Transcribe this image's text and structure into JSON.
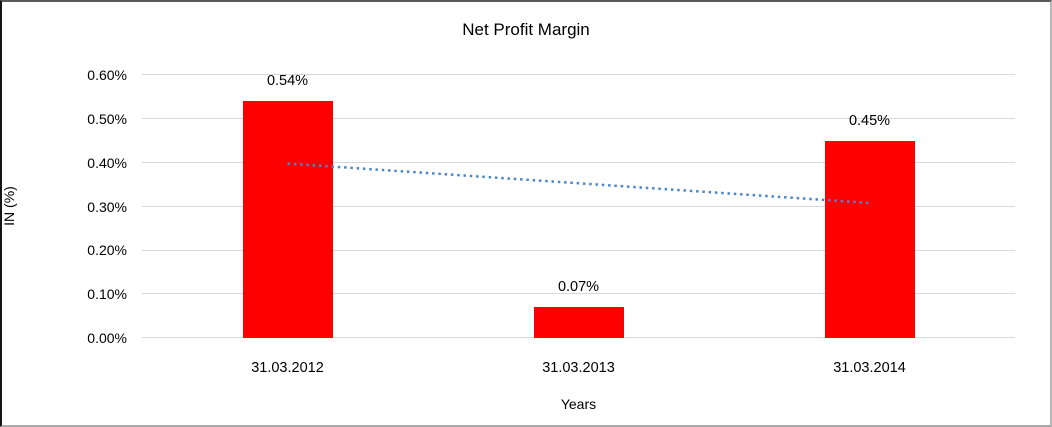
{
  "chart_data": {
    "type": "bar",
    "title": "Net Profit Margin",
    "xlabel": "Years",
    "ylabel": "IN (%)",
    "categories": [
      "31.03.2012",
      "31.03.2013",
      "31.03.2014"
    ],
    "values": [
      0.54,
      0.07,
      0.45
    ],
    "data_labels": [
      "0.54%",
      "0.07%",
      "0.45%"
    ],
    "y_ticks": [
      "0.00%",
      "0.10%",
      "0.20%",
      "0.30%",
      "0.40%",
      "0.50%",
      "0.60%"
    ],
    "ylim": [
      0,
      0.6
    ],
    "grid": true,
    "legend_position": "none",
    "bar_color": "#FF0000",
    "gridline_color": "#D9D9D9",
    "trendline": {
      "type": "linear",
      "style": "dotted",
      "color": "#4A86C8",
      "points": [
        {
          "category_index": 0,
          "value": 0.398
        },
        {
          "category_index": 2,
          "value": 0.308
        }
      ]
    }
  }
}
